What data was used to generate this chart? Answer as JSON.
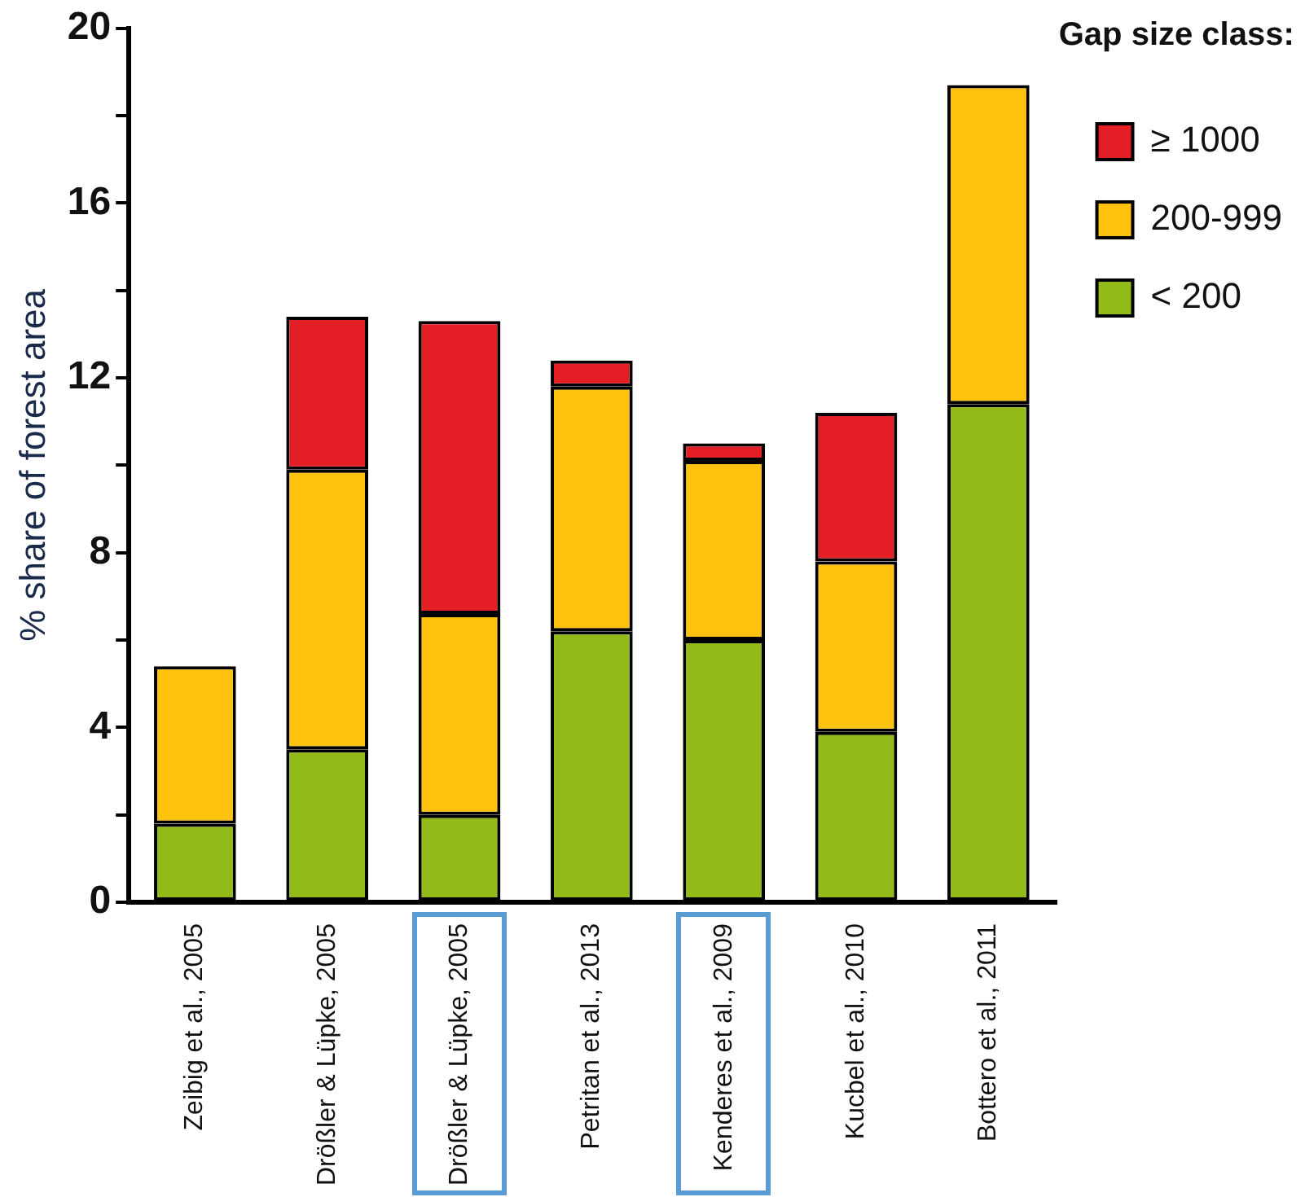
{
  "chart_data": {
    "type": "bar",
    "stacked": true,
    "ylabel": "% share of forest area",
    "legend_title": "Gap size class:",
    "legend": "top right",
    "categories": [
      "Zeibig et al., 2005",
      "Drößler & Lüpke, 2005",
      "Drößler & Lüpke, 2005",
      "Petritan et al., 2013",
      "Kenderes et al., 2009",
      "Kucbel et al., 2010",
      "Bottero et al., 2011"
    ],
    "series": [
      {
        "name": "< 200",
        "color": "#92bb1a",
        "values": [
          1.8,
          3.5,
          2.0,
          6.2,
          6.0,
          3.9,
          11.4
        ]
      },
      {
        "name": "200-999",
        "color": "#ffc20e",
        "values": [
          3.6,
          6.4,
          4.6,
          5.6,
          4.1,
          3.9,
          7.3
        ]
      },
      {
        "name": "≥ 1000",
        "color": "#e31e24",
        "values": [
          0,
          3.5,
          6.7,
          0.6,
          0.4,
          3.4,
          0
        ]
      }
    ],
    "ylim": [
      0,
      20
    ],
    "yticks": [
      0,
      {
        "value": 2,
        "label": null
      },
      4,
      {
        "value": 6,
        "label": null
      },
      8,
      {
        "value": 10,
        "label": null
      },
      12,
      {
        "value": 14,
        "label": null
      },
      16,
      {
        "value": 18,
        "label": null
      },
      20
    ],
    "grid": false
  }
}
